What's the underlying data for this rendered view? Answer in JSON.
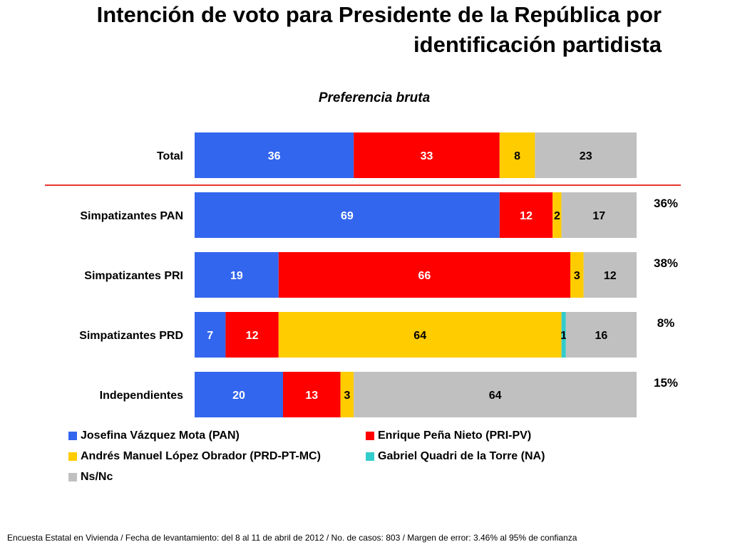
{
  "title": "Intención de voto para Presidente de la República por identificación partidista",
  "footnote": "Encuesta Estatal en Vivienda / Fecha de levantamiento: del  8 al 11 de abril de 2012 / No. de casos: 803 / Margen de error: 3.46% al 95% de confianza",
  "chart_data": {
    "type": "bar",
    "orientation": "horizontal",
    "stacked": true,
    "title": "Preferencia bruta",
    "xlabel": "",
    "ylabel": "",
    "xlim": [
      0,
      100
    ],
    "grid": false,
    "legend_position": "bottom",
    "categories": [
      "Total",
      "Simpatizantes PAN",
      "Simpatizantes PRI",
      "Simpatizantes PRD",
      "Independientes"
    ],
    "category_shares": [
      "",
      "36%",
      "38%",
      "8%",
      "15%"
    ],
    "series": [
      {
        "name": "Josefina Vázquez Mota (PAN)",
        "color": "#3366ee",
        "values": [
          36,
          69,
          19,
          7,
          20
        ]
      },
      {
        "name": "Enrique Peña Nieto (PRI-PV)",
        "color": "#ff0000",
        "values": [
          33,
          12,
          66,
          12,
          13
        ]
      },
      {
        "name": "Andrés Manuel López Obrador (PRD-PT-MC)",
        "color": "#ffcc00",
        "values": [
          8,
          2,
          3,
          64,
          3
        ]
      },
      {
        "name": "Gabriel Quadri de la Torre (NA)",
        "color": "#33cccc",
        "values": [
          null,
          null,
          null,
          1,
          null
        ]
      },
      {
        "name": "Ns/Nc",
        "color": "#c0c0c0",
        "values": [
          23,
          17,
          12,
          16,
          64
        ]
      }
    ],
    "label_colors": [
      "#ffffff",
      "#ffffff",
      "#000000",
      "#000000",
      "#000000"
    ],
    "separator_after_category": "Total",
    "separator_color": "#e8362e"
  }
}
